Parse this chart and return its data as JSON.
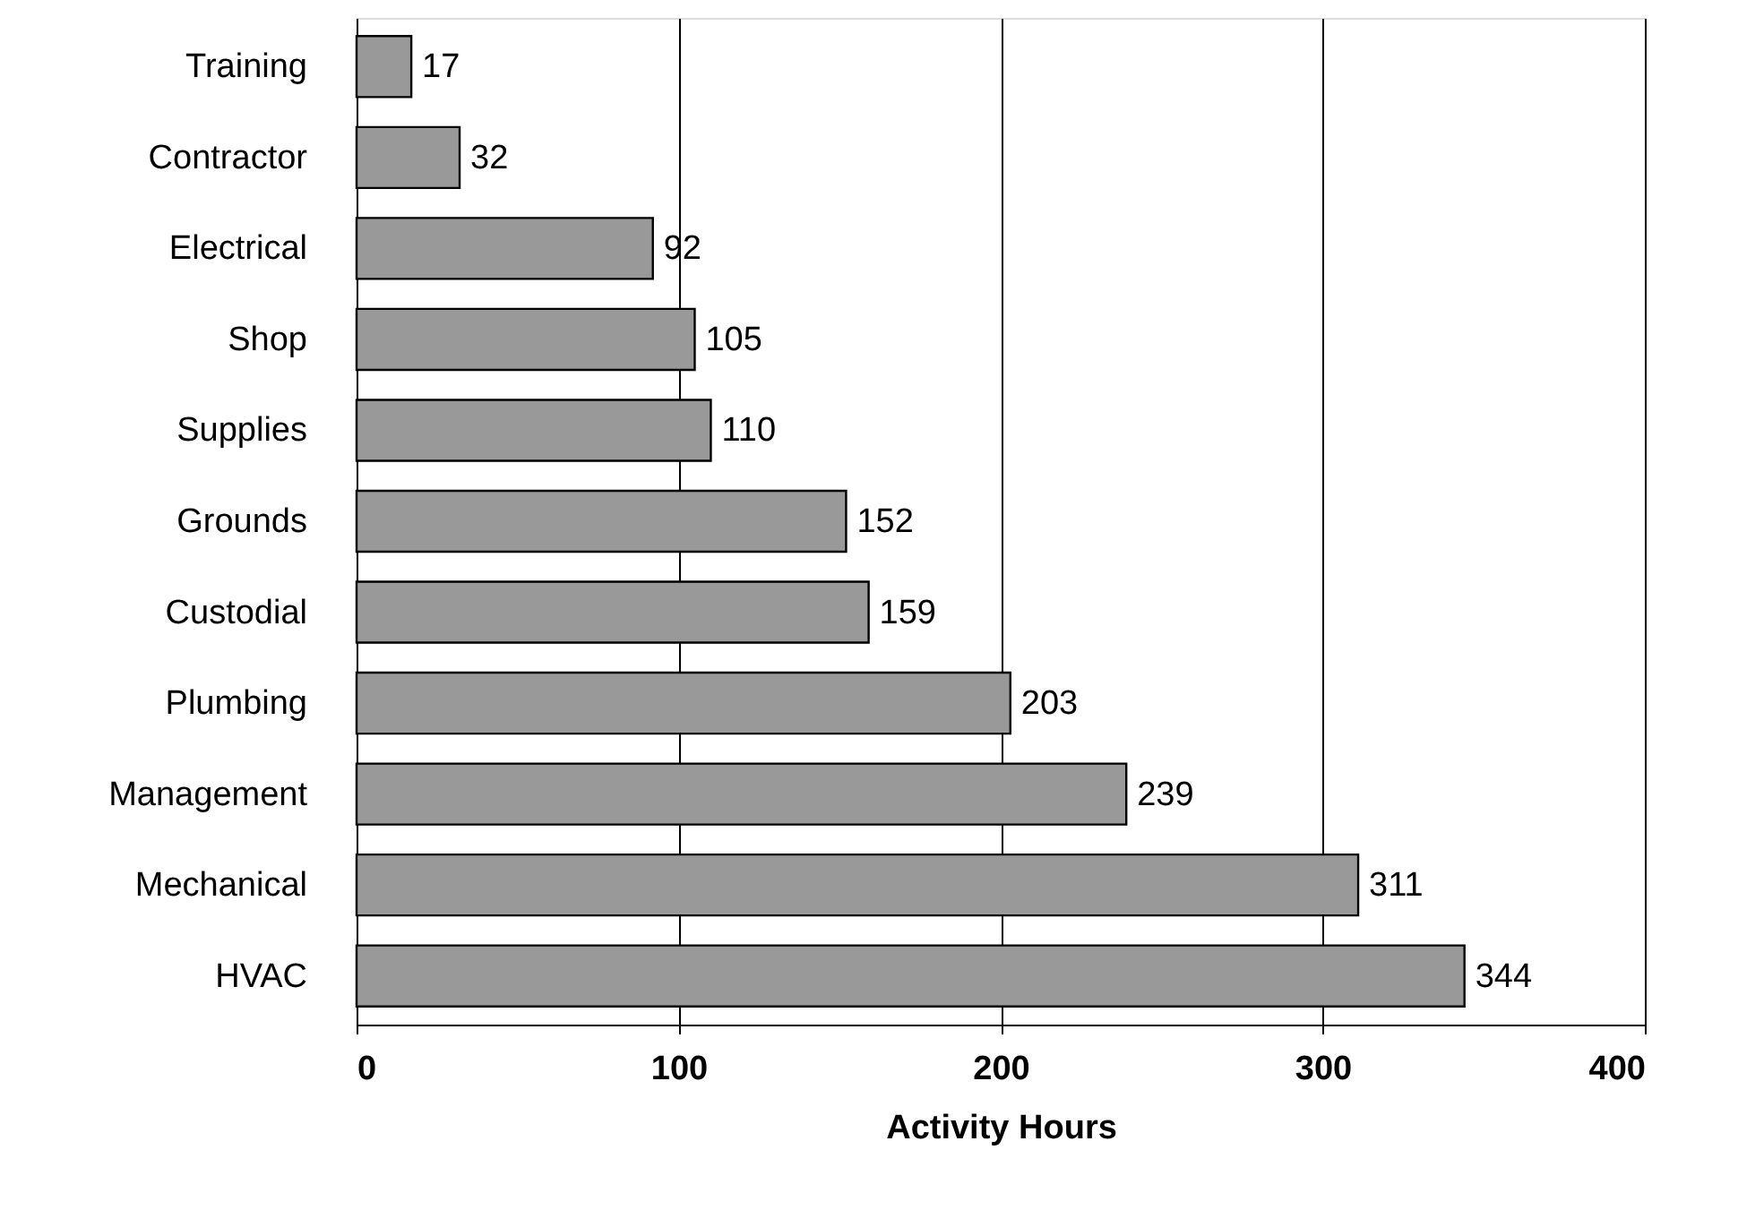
{
  "chart_data": {
    "type": "bar",
    "orientation": "horizontal",
    "xlabel": "Activity Hours",
    "categories": [
      "Training",
      "Contractor",
      "Electrical",
      "Shop",
      "Supplies",
      "Grounds",
      "Custodial",
      "Plumbing",
      "Management",
      "Mechanical",
      "HVAC"
    ],
    "values": [
      17,
      32,
      92,
      105,
      110,
      152,
      159,
      203,
      239,
      311,
      344
    ],
    "color": "#999999",
    "xlim": [
      0,
      400
    ],
    "xticks": [
      0,
      100,
      200,
      300,
      400
    ],
    "grid": "x",
    "data_labels": true
  }
}
